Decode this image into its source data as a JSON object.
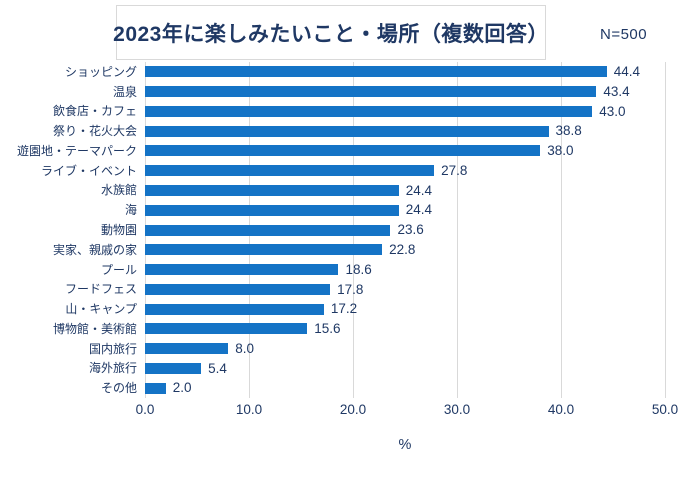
{
  "header": {
    "title": "2023年に楽しみたいこと・場所（複数回答）",
    "n_label": "N=500"
  },
  "chart_data": {
    "type": "bar",
    "orientation": "horizontal",
    "title": "2023年に楽しみたいこと・場所（複数回答）",
    "sample_size": "N=500",
    "categories": [
      "ショッピング",
      "温泉",
      "飲食店・カフェ",
      "祭り・花火大会",
      "遊園地・テーマパーク",
      "ライブ・イベント",
      "水族館",
      "海",
      "動物園",
      "実家、親戚の家",
      "プール",
      "フードフェス",
      "山・キャンプ",
      "博物館・美術館",
      "国内旅行",
      "海外旅行",
      "その他"
    ],
    "values": [
      44.4,
      43.4,
      43.0,
      38.8,
      38.0,
      27.8,
      24.4,
      24.4,
      23.6,
      22.8,
      18.6,
      17.8,
      17.2,
      15.6,
      8.0,
      5.4,
      2.0
    ],
    "xlabel": "%",
    "xlim": [
      0,
      50
    ],
    "xticks": [
      "0.0",
      "10.0",
      "20.0",
      "30.0",
      "40.0",
      "50.0"
    ],
    "grid": true,
    "legend": false,
    "colors": {
      "bar": "#1473C6",
      "text": "#1F3864",
      "gridline": "#D9D9D9",
      "title_box_border": "#D9D9D9"
    }
  }
}
